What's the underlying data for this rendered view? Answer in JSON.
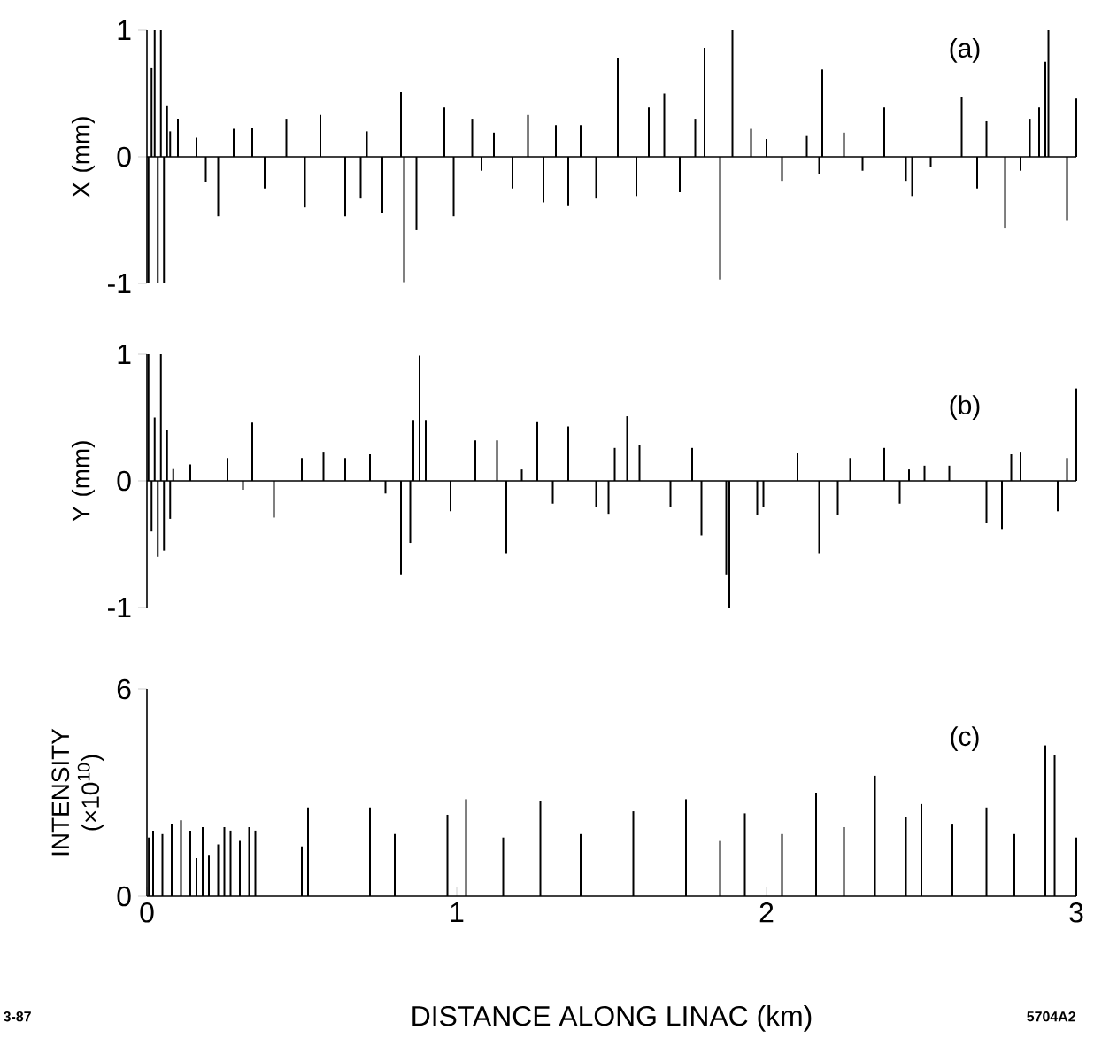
{
  "chart_data": [
    {
      "type": "bar",
      "ylabel": "X   (mm)",
      "annotations": [
        "(a)"
      ],
      "color": "#000000",
      "xlim": [
        0,
        3
      ],
      "ylim": [
        -1,
        1
      ],
      "yticks": [
        -1,
        0,
        1
      ],
      "tick_labels": "y",
      "x": [
        0.005,
        0.015,
        0.025,
        0.035,
        0.045,
        0.055,
        0.065,
        0.075,
        0.1,
        0.16,
        0.19,
        0.23,
        0.28,
        0.34,
        0.38,
        0.45,
        0.51,
        0.56,
        0.64,
        0.69,
        0.71,
        0.76,
        0.82,
        0.83,
        0.87,
        0.96,
        0.99,
        1.05,
        1.08,
        1.12,
        1.18,
        1.23,
        1.28,
        1.32,
        1.36,
        1.4,
        1.45,
        1.52,
        1.58,
        1.62,
        1.67,
        1.72,
        1.77,
        1.8,
        1.85,
        1.89,
        1.95,
        2.0,
        2.05,
        2.13,
        2.17,
        2.18,
        2.25,
        2.31,
        2.38,
        2.45,
        2.47,
        2.53,
        2.63,
        2.68,
        2.71,
        2.77,
        2.82,
        2.85,
        2.88,
        2.9,
        2.91,
        2.97,
        3.0
      ],
      "values": [
        -1.0,
        0.7,
        1.0,
        -1.0,
        1.0,
        -1.0,
        0.4,
        0.2,
        0.3,
        0.15,
        -0.2,
        -0.47,
        0.22,
        0.23,
        -0.25,
        0.3,
        -0.4,
        0.33,
        -0.47,
        -0.33,
        0.2,
        -0.44,
        0.51,
        -0.99,
        -0.58,
        0.39,
        -0.47,
        0.3,
        -0.11,
        0.19,
        -0.25,
        0.33,
        -0.36,
        0.25,
        -0.39,
        0.25,
        -0.33,
        0.78,
        -0.31,
        0.39,
        0.5,
        -0.28,
        0.3,
        0.86,
        -0.97,
        1.0,
        0.22,
        0.14,
        -0.19,
        0.17,
        -0.14,
        0.69,
        0.19,
        -0.11,
        0.39,
        -0.19,
        -0.31,
        -0.08,
        0.47,
        -0.25,
        0.28,
        -0.56,
        -0.11,
        0.3,
        0.39,
        0.75,
        1.0,
        -0.5,
        0.46
      ]
    },
    {
      "type": "bar",
      "ylabel": "Y   (mm)",
      "annotations": [
        "(b)"
      ],
      "color": "#000000",
      "xlim": [
        0,
        3
      ],
      "ylim": [
        -1,
        1
      ],
      "yticks": [
        -1,
        0,
        1
      ],
      "tick_labels": "y",
      "x": [
        0.005,
        0.015,
        0.025,
        0.035,
        0.045,
        0.055,
        0.065,
        0.075,
        0.085,
        0.14,
        0.26,
        0.31,
        0.34,
        0.41,
        0.5,
        0.57,
        0.64,
        0.72,
        0.77,
        0.82,
        0.85,
        0.86,
        0.88,
        0.9,
        0.98,
        1.06,
        1.13,
        1.16,
        1.21,
        1.26,
        1.31,
        1.36,
        1.45,
        1.49,
        1.51,
        1.55,
        1.59,
        1.69,
        1.76,
        1.79,
        1.87,
        1.88,
        1.97,
        1.99,
        2.1,
        2.17,
        2.23,
        2.27,
        2.38,
        2.43,
        2.46,
        2.51,
        2.59,
        2.71,
        2.76,
        2.79,
        2.82,
        2.94,
        2.97,
        3.0
      ],
      "values": [
        1.0,
        -0.4,
        0.5,
        -0.6,
        1.0,
        -0.55,
        0.4,
        -0.3,
        0.1,
        0.13,
        0.18,
        -0.07,
        0.46,
        -0.29,
        0.18,
        0.23,
        0.18,
        0.21,
        -0.1,
        -0.74,
        -0.49,
        0.48,
        0.99,
        0.48,
        -0.24,
        0.32,
        0.32,
        -0.57,
        0.09,
        0.47,
        -0.18,
        0.43,
        -0.21,
        -0.26,
        0.26,
        0.51,
        0.28,
        -0.21,
        0.26,
        -0.43,
        -0.74,
        -1.0,
        -0.27,
        -0.21,
        0.22,
        -0.57,
        -0.27,
        0.18,
        0.26,
        -0.18,
        0.09,
        0.12,
        0.12,
        -0.33,
        -0.38,
        0.21,
        0.23,
        -0.24,
        0.18,
        0.73
      ]
    },
    {
      "type": "bar",
      "ylabel": "INTENSITY (×10$^{10}$)",
      "xlabel": "DISTANCE ALONG LINAC   (km)",
      "annotations": [
        "(c)",
        "3-87",
        "5704A2"
      ],
      "color": "#000000",
      "xlim": [
        0,
        3
      ],
      "xticks": [
        0,
        1,
        2,
        3
      ],
      "ylim": [
        0,
        6
      ],
      "yticks": [
        0,
        6
      ],
      "x": [
        0.006,
        0.02,
        0.05,
        0.08,
        0.11,
        0.14,
        0.16,
        0.18,
        0.2,
        0.23,
        0.25,
        0.27,
        0.3,
        0.33,
        0.35,
        0.5,
        0.52,
        0.72,
        0.8,
        0.97,
        1.03,
        1.15,
        1.27,
        1.4,
        1.57,
        1.74,
        1.85,
        1.93,
        2.05,
        2.16,
        2.25,
        2.35,
        2.45,
        2.5,
        2.6,
        2.71,
        2.8,
        2.9,
        2.93,
        3.0
      ],
      "values": [
        1.7,
        1.9,
        1.8,
        2.1,
        2.2,
        1.9,
        1.1,
        2.0,
        1.2,
        1.5,
        2.0,
        1.9,
        1.6,
        2.0,
        1.9,
        1.44,
        2.57,
        2.57,
        1.8,
        2.36,
        2.81,
        1.7,
        2.77,
        1.8,
        2.46,
        2.81,
        1.6,
        2.4,
        1.8,
        3.0,
        2.0,
        3.49,
        2.3,
        2.67,
        2.1,
        2.57,
        1.8,
        4.37,
        4.1,
        1.7
      ]
    }
  ]
}
